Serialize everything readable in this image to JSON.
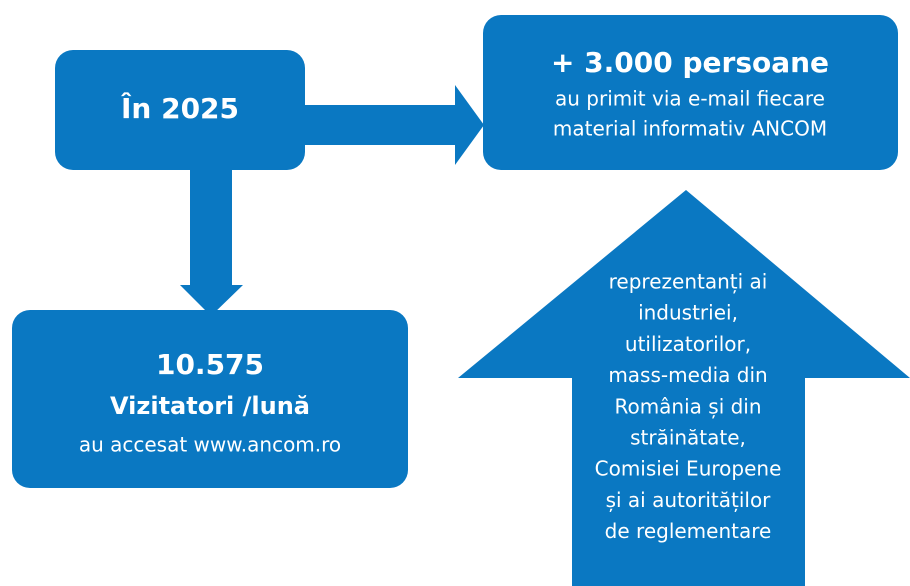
{
  "nodes": [
    {
      "label": "În 2025"
    },
    {
      "title": "+ 3.000 persoane",
      "text": [
        "au primit via e-mail fiecare",
        "material informativ ANCOM"
      ]
    },
    {
      "title": "10.575",
      "subtitle": "Vizitatori /lună",
      "text": "au accesat www.ancom.ro"
    },
    {
      "text": [
        "reprezentanți ai",
        "industriei,",
        "utilizatorilor,",
        "mass-media din",
        "România și din",
        "străinătate,",
        "Comisiei Europene",
        "și ai autorităților",
        "de reglementare"
      ]
    }
  ]
}
